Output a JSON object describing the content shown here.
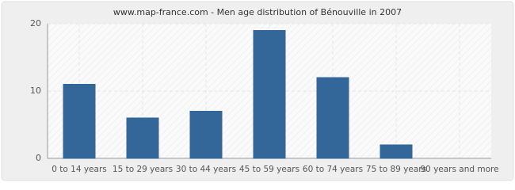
{
  "chart_data": {
    "type": "bar",
    "title": "www.map-france.com - Men age distribution of Bénouville in 2007",
    "categories": [
      "0 to 14 years",
      "15 to 29 years",
      "30 to 44 years",
      "45 to 59 years",
      "60 to 74 years",
      "75 to 89 years",
      "90 years and more"
    ],
    "values": [
      11,
      6,
      7,
      19,
      12,
      2,
      0
    ],
    "color": "#336699",
    "ylim": [
      0,
      20
    ],
    "yticks": [
      0,
      10,
      20
    ],
    "grid": true
  }
}
